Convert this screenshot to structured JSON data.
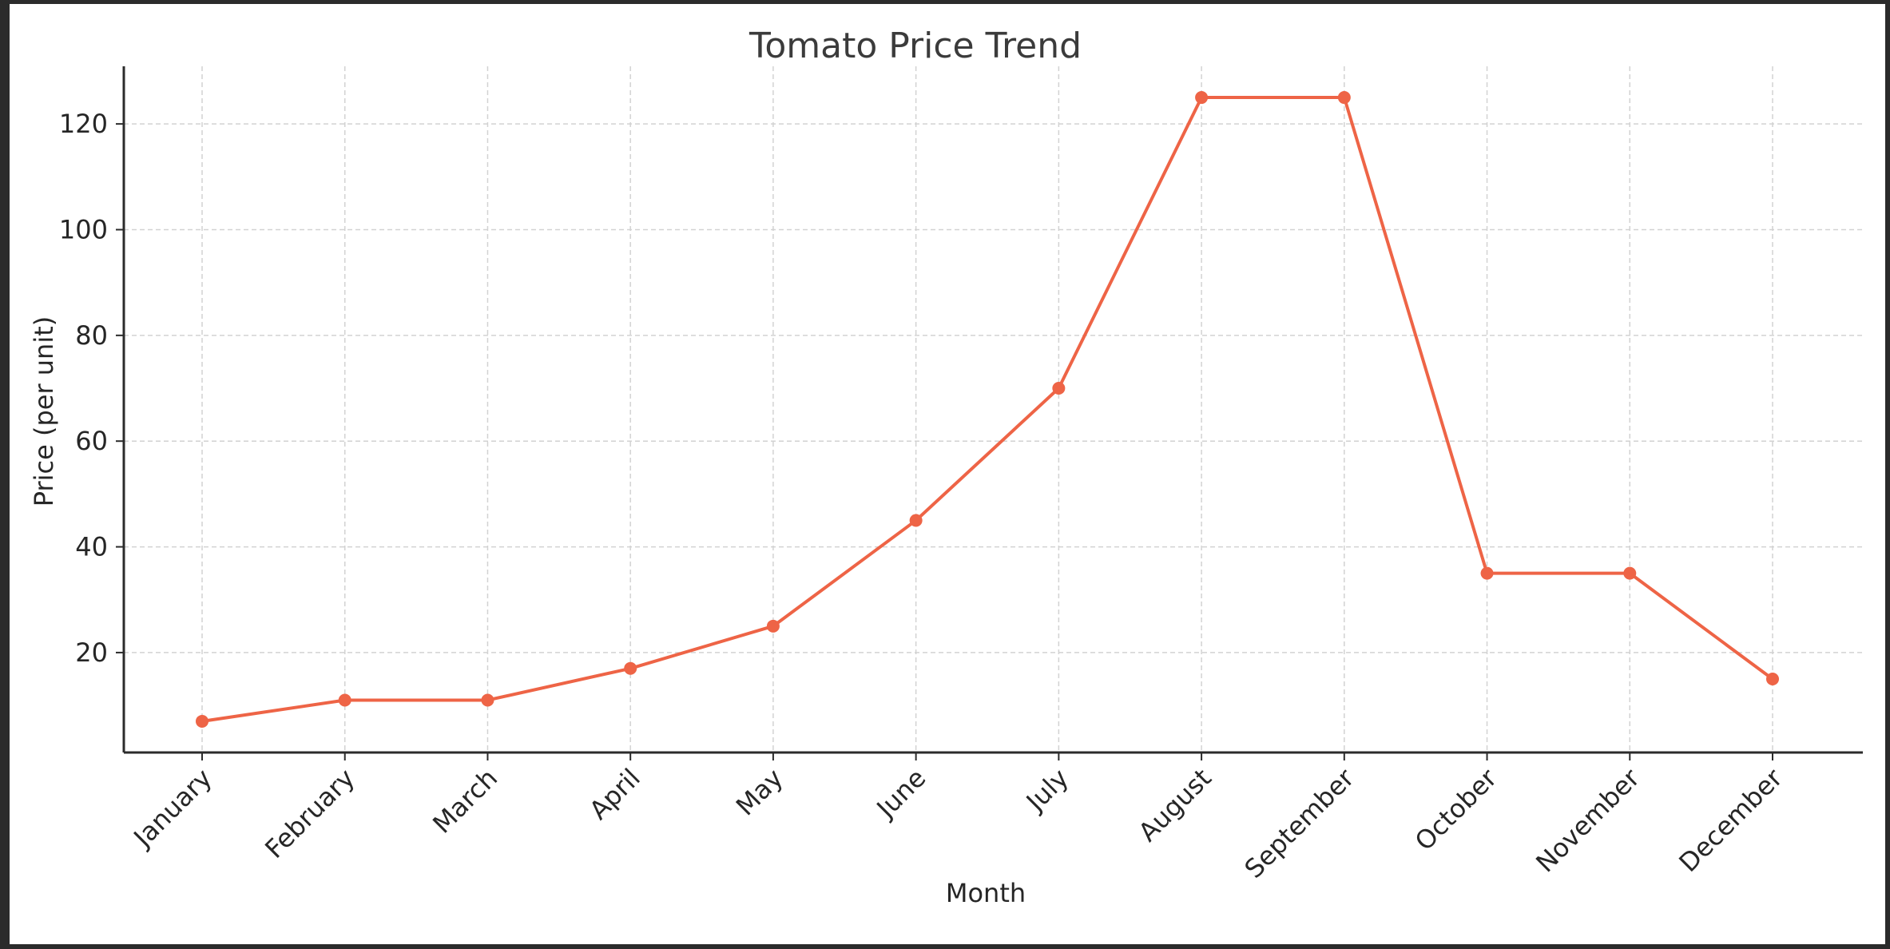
{
  "chart_data": {
    "type": "line",
    "title": "Tomato Price Trend",
    "xlabel": "Month",
    "ylabel": "Price (per unit)",
    "categories": [
      "January",
      "February",
      "March",
      "April",
      "May",
      "June",
      "July",
      "August",
      "September",
      "October",
      "November",
      "December"
    ],
    "series": [
      {
        "values": [
          7,
          11,
          11,
          17,
          25,
          45,
          70,
          125,
          125,
          35,
          35,
          15
        ],
        "color": "#ee6446"
      }
    ],
    "yticks": [
      20,
      40,
      60,
      80,
      100,
      120
    ],
    "ylim": [
      1.1,
      130.9
    ],
    "grid": true,
    "legend": "none"
  }
}
